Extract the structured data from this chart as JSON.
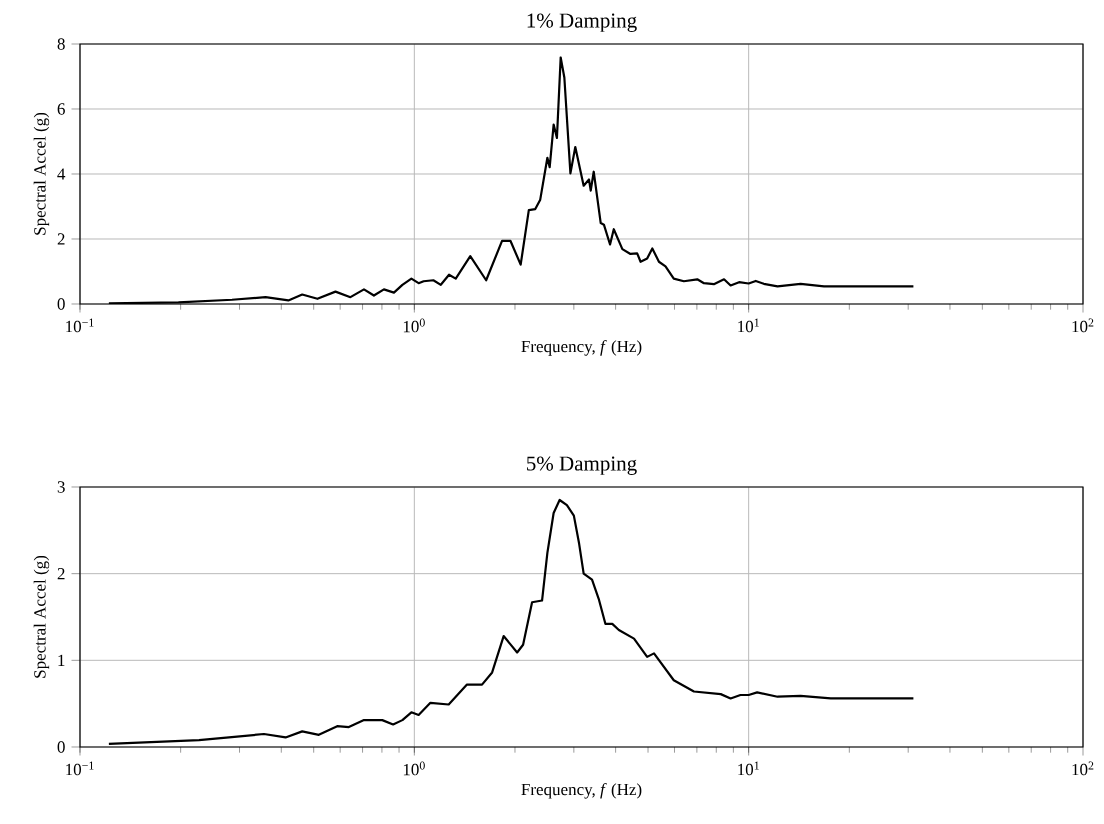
{
  "chart_data": [
    {
      "type": "line",
      "title": "1% Damping",
      "xlabel": "Frequency, *f* (Hz)",
      "ylabel": "Spectral Accel (g)",
      "log": "x",
      "grid": true,
      "line_style": "solid",
      "xlim": [
        0.1,
        100
      ],
      "ylim": [
        0,
        8
      ],
      "xticks": [
        {
          "value": 0.1,
          "label": "10$^{−1}$"
        },
        {
          "value": 1,
          "label": "10$^{0}$"
        },
        {
          "value": 10,
          "label": "10$^{1}$"
        },
        {
          "value": 100,
          "label": "10$^{2}$"
        }
      ],
      "yticks": [
        0,
        2,
        4,
        6,
        8
      ],
      "series": [
        {
          "color": "#000000",
          "x": [
            0.122,
            0.197,
            0.285,
            0.359,
            0.42,
            0.462,
            0.513,
            0.581,
            0.644,
            0.707,
            0.757,
            0.811,
            0.869,
            0.921,
            0.98,
            1.03,
            1.066,
            1.14,
            1.2,
            1.27,
            1.33,
            1.47,
            1.64,
            1.83,
            1.94,
            2.08,
            2.2,
            2.3,
            2.38,
            2.5,
            2.54,
            2.61,
            2.67,
            2.74,
            2.81,
            2.93,
            3.03,
            3.21,
            3.33,
            3.37,
            3.44,
            3.61,
            3.69,
            3.85,
            3.95,
            4.19,
            4.43,
            4.64,
            4.75,
            4.97,
            5.15,
            5.39,
            5.64,
            5.97,
            6.4,
            7.02,
            7.35,
            7.87,
            8.44,
            8.83,
            9.36,
            10.0,
            10.5,
            11.1,
            12.2,
            14.3,
            16.8,
            23.7,
            31.1
          ],
          "values": [
            0.02,
            0.05,
            0.13,
            0.21,
            0.11,
            0.29,
            0.16,
            0.38,
            0.21,
            0.45,
            0.26,
            0.45,
            0.35,
            0.59,
            0.78,
            0.64,
            0.7,
            0.73,
            0.59,
            0.9,
            0.78,
            1.47,
            0.73,
            1.94,
            1.94,
            1.21,
            2.89,
            2.92,
            3.21,
            4.5,
            4.21,
            5.52,
            5.11,
            7.59,
            6.97,
            4.02,
            4.83,
            3.64,
            3.83,
            3.49,
            4.07,
            2.49,
            2.44,
            1.83,
            2.3,
            1.69,
            1.54,
            1.56,
            1.3,
            1.4,
            1.71,
            1.3,
            1.16,
            0.78,
            0.7,
            0.76,
            0.64,
            0.61,
            0.76,
            0.57,
            0.67,
            0.63,
            0.71,
            0.62,
            0.54,
            0.62,
            0.54,
            0.54,
            0.54
          ]
        }
      ]
    },
    {
      "type": "line",
      "title": "5% Damping",
      "xlabel": "Frequency, *f* (Hz)",
      "ylabel": "Spectral Accel (g)",
      "log": "x",
      "grid": true,
      "line_style": "solid",
      "xlim": [
        0.1,
        100
      ],
      "ylim": [
        0,
        3
      ],
      "xticks": [
        {
          "value": 0.1,
          "label": "10$^{−1}$"
        },
        {
          "value": 1,
          "label": "10$^{0}$"
        },
        {
          "value": 10,
          "label": "10$^{1}$"
        },
        {
          "value": 100,
          "label": "10$^{2}$"
        }
      ],
      "yticks": [
        0,
        1,
        2,
        3
      ],
      "series": [
        {
          "color": "#000000",
          "x": [
            0.122,
            0.227,
            0.279,
            0.355,
            0.412,
            0.462,
            0.518,
            0.588,
            0.637,
            0.707,
            0.802,
            0.864,
            0.921,
            0.98,
            1.03,
            1.117,
            1.267,
            1.437,
            1.594,
            1.709,
            1.85,
            2.03,
            2.115,
            2.25,
            2.41,
            2.5,
            2.61,
            2.72,
            2.86,
            3.0,
            3.11,
            3.21,
            3.4,
            3.56,
            3.73,
            3.91,
            4.09,
            4.54,
            4.97,
            5.21,
            5.97,
            6.86,
            8.25,
            8.83,
            9.45,
            10.0,
            10.6,
            12.2,
            14.3,
            17.6,
            31.1
          ],
          "values": [
            0.035,
            0.08,
            0.11,
            0.15,
            0.11,
            0.18,
            0.14,
            0.24,
            0.23,
            0.31,
            0.31,
            0.26,
            0.31,
            0.4,
            0.37,
            0.51,
            0.49,
            0.72,
            0.72,
            0.86,
            1.28,
            1.09,
            1.18,
            1.67,
            1.69,
            2.24,
            2.7,
            2.85,
            2.79,
            2.67,
            2.35,
            2.0,
            1.93,
            1.71,
            1.42,
            1.42,
            1.35,
            1.25,
            1.04,
            1.08,
            0.77,
            0.64,
            0.61,
            0.56,
            0.6,
            0.6,
            0.63,
            0.58,
            0.59,
            0.56,
            0.56
          ]
        }
      ]
    }
  ]
}
